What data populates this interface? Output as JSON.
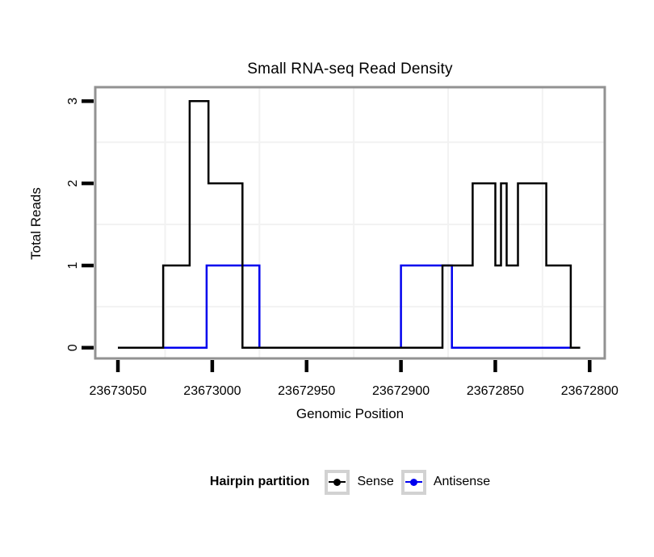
{
  "chart_data": {
    "type": "step",
    "title": "Small RNA-seq Read Density",
    "xlabel": "Genomic Position",
    "ylabel": "Total Reads",
    "x_ticks": [
      23673050,
      23673000,
      23672950,
      23672900,
      23672850,
      23672800
    ],
    "y_ticks": [
      0,
      1,
      2,
      3
    ],
    "xlim": [
      23673062,
      23672792
    ],
    "ylim": [
      -0.13,
      3.17
    ],
    "x_reversed": true,
    "grid": "minor-only",
    "legend_title": "Hairpin partition",
    "legend_position": "bottom",
    "series": [
      {
        "name": "Sense",
        "color": "#000000",
        "points": [
          [
            23673050,
            0
          ],
          [
            23673026,
            0
          ],
          [
            23673026,
            1
          ],
          [
            23673012,
            1
          ],
          [
            23673012,
            3
          ],
          [
            23673002,
            3
          ],
          [
            23673002,
            2
          ],
          [
            23672984,
            2
          ],
          [
            23672984,
            0
          ],
          [
            23672878,
            0
          ],
          [
            23672878,
            1
          ],
          [
            23672862,
            1
          ],
          [
            23672862,
            2
          ],
          [
            23672850,
            2
          ],
          [
            23672850,
            1
          ],
          [
            23672847,
            1
          ],
          [
            23672847,
            2
          ],
          [
            23672844,
            2
          ],
          [
            23672844,
            1
          ],
          [
            23672838,
            1
          ],
          [
            23672838,
            2
          ],
          [
            23672823,
            2
          ],
          [
            23672823,
            1
          ],
          [
            23672810,
            1
          ],
          [
            23672810,
            0
          ],
          [
            23672805,
            0
          ]
        ]
      },
      {
        "name": "Antisense",
        "color": "#0000EE",
        "points": [
          [
            23673026,
            0
          ],
          [
            23673003,
            0
          ],
          [
            23673003,
            1
          ],
          [
            23672975,
            1
          ],
          [
            23672975,
            0
          ],
          [
            23672900,
            0
          ],
          [
            23672900,
            1
          ],
          [
            23672873,
            1
          ],
          [
            23672873,
            0
          ],
          [
            23672810,
            0
          ]
        ]
      }
    ],
    "style": {
      "background": "#ffffff",
      "panel_border": "#929292",
      "grid_minor": "#f2f2f2",
      "tick_color": "#000000",
      "legend_key_border": "#d2d2d2"
    }
  }
}
